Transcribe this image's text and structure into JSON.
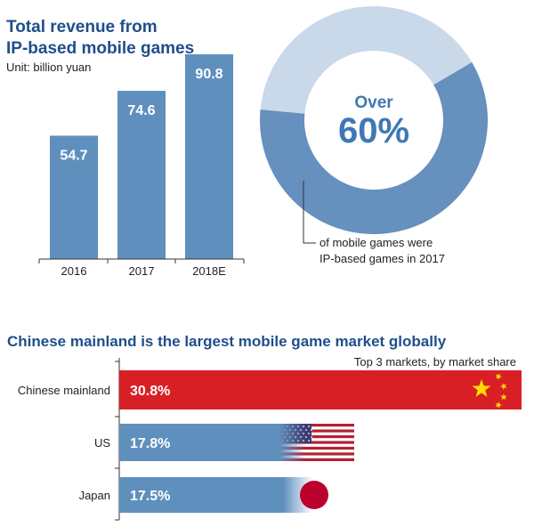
{
  "chart_data": [
    {
      "type": "bar",
      "title": "Total revenue from IP-based mobile games",
      "title_lines": [
        "Total revenue from",
        "IP-based mobile games"
      ],
      "unit": "Unit: billion yuan",
      "categories": [
        "2016",
        "2017",
        "2018E"
      ],
      "values": [
        54.7,
        74.6,
        90.8
      ],
      "value_labels": [
        "54.7",
        "74.6",
        "90.8"
      ],
      "ylim": [
        0,
        100
      ],
      "bar_color": "#5f8fbd",
      "grid": false
    },
    {
      "type": "pie",
      "style": "donut",
      "slices": [
        {
          "value": 60,
          "color": "#6690bd"
        },
        {
          "value": 40,
          "color": "#c9d9ea"
        }
      ],
      "center_label": "Over",
      "center_value": "60%",
      "annotation_lines": [
        "of mobile games were",
        "IP-based games in 2017"
      ]
    },
    {
      "type": "bar",
      "orientation": "horizontal",
      "title": "Chinese mainland is the largest mobile game market globally",
      "subtitle": "Top 3 markets, by market share",
      "categories": [
        "Chinese mainland",
        "US",
        "Japan"
      ],
      "values": [
        30.8,
        17.8,
        17.5
      ],
      "value_labels": [
        "30.8%",
        "17.8%",
        "17.5%"
      ],
      "bar_colors": [
        "#d91f26",
        "#5f8fbd",
        "#5f8fbd"
      ],
      "flags": [
        "china-flag",
        "us-flag",
        "japan-flag"
      ],
      "grid": false
    }
  ],
  "colors": {
    "title": "#1f4e8c",
    "bar": "#5f8fbd",
    "donut_main": "#6690bd",
    "donut_rest": "#c9d9ea",
    "china_red": "#d91f26",
    "star_yellow": "#ffde00",
    "us_blue": "#3c3b6e",
    "us_red": "#b22234",
    "japan_red": "#bc002d"
  }
}
